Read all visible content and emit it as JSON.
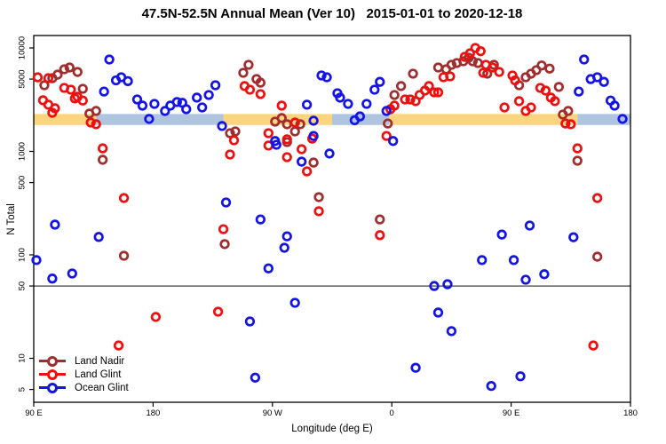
{
  "chart_title": "47.5N-52.5N Annual Mean (Ver 10)   2015-01-01 to 2020-12-18",
  "legend": {
    "items": [
      {
        "label": "Land Nadir",
        "color": "#A02E2E"
      },
      {
        "label": "Land Glint",
        "color": "#EE1010"
      },
      {
        "label": "Ocean Glint",
        "color": "#1414E6"
      }
    ]
  },
  "chart_data": {
    "type": "scatter",
    "title": "47.5N-52.5N Annual Mean (Ver 10)   2015-01-01 to 2020-12-18",
    "xlabel": "Longitude (deg E)",
    "ylabel": "N Total",
    "x_axis": {
      "range": [
        90,
        540
      ],
      "tick_values": [
        90,
        180,
        270,
        360,
        450,
        540
      ],
      "tick_labels": [
        "90 E",
        "180",
        "90 W",
        "0",
        "90 E",
        "180"
      ],
      "note": "longitude axis continues eastward past 180 and wraps through 0 back to 180"
    },
    "y_axis": {
      "scale": "log",
      "range": [
        4,
        13000
      ],
      "tick_values": [
        10000,
        5000,
        1000,
        500,
        100,
        50,
        10,
        5
      ],
      "tick_labels": [
        "10000",
        "5000",
        "1000",
        "500",
        "100",
        "50",
        "10",
        "5"
      ]
    },
    "reference_line": {
      "value": 50,
      "color": "#606060"
    },
    "bands": {
      "value_range": [
        1800,
        2300
      ],
      "colors": {
        "land": "#FAD47F",
        "ocean": "#AFC4DF"
      },
      "segments": [
        {
          "from": 90,
          "to": 137,
          "kind": "land"
        },
        {
          "from": 137,
          "to": 233,
          "kind": "ocean"
        },
        {
          "from": 233,
          "to": 315,
          "kind": "land"
        },
        {
          "from": 315,
          "to": 358,
          "kind": "ocean"
        },
        {
          "from": 358,
          "to": 500,
          "kind": "land"
        },
        {
          "from": 500,
          "to": 540,
          "kind": "ocean"
        }
      ]
    },
    "series": [
      {
        "name": "Land Nadir",
        "color": "#A02E2E",
        "points": [
          [
            98,
            4360
          ],
          [
            104,
            5100
          ],
          [
            108,
            5520
          ],
          [
            113,
            6220
          ],
          [
            117,
            6470
          ],
          [
            123,
            5860
          ],
          [
            127,
            4030
          ],
          [
            132,
            2320
          ],
          [
            137,
            2460
          ],
          [
            142,
            830
          ],
          [
            158,
            98
          ],
          [
            234,
            127
          ],
          [
            238,
            1500
          ],
          [
            242,
            1560
          ],
          [
            248,
            5750
          ],
          [
            252,
            6870
          ],
          [
            258,
            5010
          ],
          [
            261,
            4620
          ],
          [
            272,
            1940
          ],
          [
            277,
            2100
          ],
          [
            281,
            1830
          ],
          [
            281,
            1230
          ],
          [
            287,
            1560
          ],
          [
            291,
            1830
          ],
          [
            301,
            780
          ],
          [
            305,
            361
          ],
          [
            351,
            220
          ],
          [
            357,
            1860
          ],
          [
            362,
            3510
          ],
          [
            367,
            4280
          ],
          [
            376,
            5640
          ],
          [
            395,
            6470
          ],
          [
            401,
            6220
          ],
          [
            405,
            6870
          ],
          [
            409,
            7150
          ],
          [
            414,
            7430
          ],
          [
            418,
            8050
          ],
          [
            421,
            7430
          ],
          [
            425,
            7150
          ],
          [
            432,
            5640
          ],
          [
            437,
            6870
          ],
          [
            456,
            4360
          ],
          [
            461,
            5210
          ],
          [
            465,
            5640
          ],
          [
            469,
            6100
          ],
          [
            473,
            6770
          ],
          [
            479,
            6320
          ],
          [
            486,
            4200
          ],
          [
            489,
            2270
          ],
          [
            493,
            2460
          ],
          [
            500,
            813
          ],
          [
            515,
            96
          ]
        ]
      },
      {
        "name": "Land Glint",
        "color": "#EE1010",
        "points": [
          [
            93,
            5200
          ],
          [
            101,
            5100
          ],
          [
            113,
            4110
          ],
          [
            118,
            3950
          ],
          [
            121,
            3250
          ],
          [
            123,
            3370
          ],
          [
            127,
            3100
          ],
          [
            97,
            3120
          ],
          [
            101,
            2830
          ],
          [
            106,
            2610
          ],
          [
            104,
            2360
          ],
          [
            133,
            1900
          ],
          [
            137,
            1830
          ],
          [
            142,
            1070
          ],
          [
            154,
            13.3
          ],
          [
            158,
            354
          ],
          [
            182,
            25.1
          ],
          [
            229,
            28.2
          ],
          [
            233,
            177
          ],
          [
            238,
            933
          ],
          [
            241,
            1280
          ],
          [
            249,
            4280
          ],
          [
            253,
            3950
          ],
          [
            261,
            3580
          ],
          [
            267,
            1500
          ],
          [
            267,
            1140
          ],
          [
            277,
            2770
          ],
          [
            281,
            1310
          ],
          [
            281,
            880
          ],
          [
            287,
            1900
          ],
          [
            292,
            1050
          ],
          [
            296,
            641
          ],
          [
            300,
            1330
          ],
          [
            305,
            264
          ],
          [
            351,
            155
          ],
          [
            356,
            1410
          ],
          [
            359,
            2560
          ],
          [
            362,
            2770
          ],
          [
            370,
            3180
          ],
          [
            374,
            3180
          ],
          [
            378,
            3060
          ],
          [
            381,
            3510
          ],
          [
            385,
            3870
          ],
          [
            388,
            4280
          ],
          [
            392,
            3720
          ],
          [
            395,
            3720
          ],
          [
            399,
            5210
          ],
          [
            404,
            5310
          ],
          [
            415,
            8200
          ],
          [
            419,
            8870
          ],
          [
            423,
            10000
          ],
          [
            427,
            9300
          ],
          [
            429,
            5750
          ],
          [
            431,
            6870
          ],
          [
            436,
            6470
          ],
          [
            441,
            5860
          ],
          [
            445,
            2660
          ],
          [
            451,
            5420
          ],
          [
            453,
            4860
          ],
          [
            456,
            3060
          ],
          [
            461,
            2460
          ],
          [
            465,
            2660
          ],
          [
            472,
            4110
          ],
          [
            476,
            3870
          ],
          [
            480,
            3310
          ],
          [
            483,
            3060
          ],
          [
            491,
            1860
          ],
          [
            495,
            1830
          ],
          [
            500,
            1070
          ],
          [
            512,
            13.3
          ],
          [
            515,
            354
          ]
        ]
      },
      {
        "name": "Ocean Glint",
        "color": "#1414E6",
        "points": [
          [
            92,
            89
          ],
          [
            104,
            59
          ],
          [
            106,
            196
          ],
          [
            119,
            66
          ],
          [
            139,
            149
          ],
          [
            143,
            3790
          ],
          [
            147,
            7730
          ],
          [
            152,
            4860
          ],
          [
            156,
            5210
          ],
          [
            161,
            4780
          ],
          [
            168,
            3180
          ],
          [
            172,
            2770
          ],
          [
            177,
            2060
          ],
          [
            181,
            2880
          ],
          [
            189,
            2460
          ],
          [
            193,
            2770
          ],
          [
            198,
            3000
          ],
          [
            202,
            2950
          ],
          [
            205,
            2560
          ],
          [
            213,
            3310
          ],
          [
            217,
            2660
          ],
          [
            222,
            3510
          ],
          [
            227,
            4360
          ],
          [
            232,
            1760
          ],
          [
            235,
            321
          ],
          [
            253,
            22.7
          ],
          [
            257,
            6.5
          ],
          [
            261,
            220
          ],
          [
            267,
            74
          ],
          [
            272,
            1260
          ],
          [
            273,
            1160
          ],
          [
            279,
            117
          ],
          [
            281,
            151
          ],
          [
            287,
            34.4
          ],
          [
            292,
            796
          ],
          [
            296,
            2830
          ],
          [
            301,
            1980
          ],
          [
            301,
            1410
          ],
          [
            307,
            5420
          ],
          [
            311,
            5210
          ],
          [
            313,
            953
          ],
          [
            319,
            3650
          ],
          [
            321,
            3310
          ],
          [
            327,
            2880
          ],
          [
            332,
            2000
          ],
          [
            336,
            2180
          ],
          [
            341,
            2880
          ],
          [
            347,
            3950
          ],
          [
            351,
            4700
          ],
          [
            356,
            2460
          ],
          [
            361,
            1260
          ],
          [
            378,
            8.1
          ],
          [
            392,
            50
          ],
          [
            395,
            27.7
          ],
          [
            402,
            52
          ],
          [
            405,
            18.3
          ],
          [
            428,
            89
          ],
          [
            435,
            5.4
          ],
          [
            443,
            157
          ],
          [
            452,
            89
          ],
          [
            457,
            6.7
          ],
          [
            461,
            57.5
          ],
          [
            464,
            192
          ],
          [
            475,
            65
          ],
          [
            497,
            148
          ],
          [
            501,
            3790
          ],
          [
            505,
            7730
          ],
          [
            510,
            5000
          ],
          [
            515,
            5210
          ],
          [
            520,
            4700
          ],
          [
            525,
            3100
          ],
          [
            528,
            2770
          ],
          [
            534,
            2060
          ]
        ]
      }
    ]
  }
}
